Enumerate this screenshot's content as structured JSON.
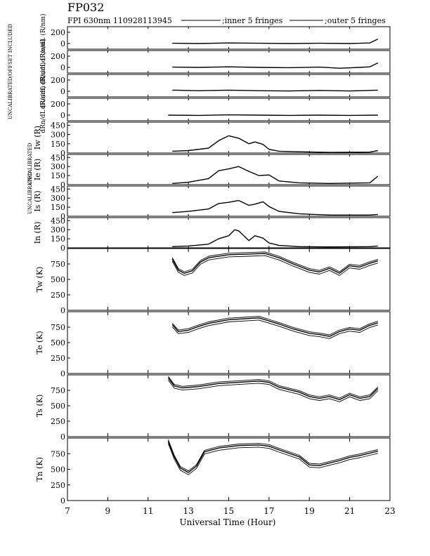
{
  "chart_data": {
    "type": "line",
    "title": "FP032",
    "subtitle": "FPI 630nm 110928113945",
    "legend": [
      {
        "name": ";inner 5 fringes"
      },
      {
        "name": ";outer 5 fringes"
      }
    ],
    "xlabel": "Universal Time (Hour)",
    "xlim": [
      7,
      23
    ],
    "xticks": [
      "7",
      "9",
      "11",
      "13",
      "15",
      "17",
      "19",
      "21",
      "23"
    ],
    "panels": [
      {
        "ylabel": "dRw/dL (R/nm)",
        "ylim": [
          -100,
          300
        ],
        "yticks": [
          0,
          200
        ],
        "series": [
          {
            "x": [
              12.2,
              13.5,
              15.0,
              16.5,
              18.0,
              19.5,
              21.0,
              22.0,
              22.4
            ],
            "y": [
              5,
              0,
              10,
              5,
              0,
              5,
              0,
              10,
              80
            ]
          }
        ]
      },
      {
        "ylabel": "dRs/dL (R/nm)",
        "ylim": [
          -100,
          300
        ],
        "yticks": [
          0,
          200
        ],
        "series": [
          {
            "x": [
              12.2,
              13.5,
              15.0,
              16.5,
              18.0,
              19.5,
              20.5,
              21.5,
              22.0,
              22.4
            ],
            "y": [
              5,
              0,
              10,
              0,
              -5,
              5,
              -15,
              0,
              10,
              80
            ]
          }
        ]
      },
      {
        "ylabel": "dRe/dL (R/nm)",
        "ylim": [
          -100,
          300
        ],
        "yticks": [
          0,
          200
        ],
        "series": [
          {
            "x": [
              12.2,
              13.5,
              15.0,
              16.5,
              18.0,
              19.5,
              21.0,
              22.4
            ],
            "y": [
              20,
              10,
              20,
              10,
              5,
              15,
              5,
              20
            ]
          }
        ]
      },
      {
        "ylabel": "dRn/dL (R/nm)",
        "ylim": [
          -100,
          300
        ],
        "yticks": [
          0,
          200
        ],
        "series": [
          {
            "x": [
              12.0,
              13.5,
              15.0,
              16.5,
              18.0,
              19.5,
              21.0,
              22.4
            ],
            "y": [
              0,
              -5,
              5,
              0,
              -5,
              0,
              -5,
              0
            ]
          }
        ]
      },
      {
        "ylabel": "Iw (R)",
        "ylim": [
          0,
          500
        ],
        "yticks": [
          0,
          150,
          300,
          450
        ],
        "series": [
          {
            "x": [
              12.2,
              13.0,
              14.0,
              14.5,
              15.0,
              15.5,
              16.0,
              16.3,
              16.7,
              17.0,
              17.5,
              18.5,
              20.0,
              22.0,
              22.4
            ],
            "y": [
              30,
              40,
              80,
              200,
              280,
              240,
              150,
              180,
              140,
              60,
              30,
              20,
              10,
              15,
              40
            ]
          }
        ]
      },
      {
        "ylabel": "Ie (R)",
        "ylim": [
          0,
          500
        ],
        "yticks": [
          0,
          150,
          300,
          450
        ],
        "series": [
          {
            "x": [
              12.2,
              13.0,
              14.0,
              14.5,
              15.0,
              15.5,
              16.0,
              16.5,
              17.0,
              17.5,
              18.5,
              20.0,
              22.0,
              22.4
            ],
            "y": [
              20,
              40,
              100,
              230,
              260,
              300,
              220,
              150,
              160,
              60,
              30,
              20,
              30,
              140
            ]
          }
        ]
      },
      {
        "ylabel": "Is (R)",
        "ylim": [
          0,
          500
        ],
        "yticks": [
          0,
          150,
          300,
          450
        ],
        "series": [
          {
            "x": [
              12.2,
              13.0,
              14.0,
              14.5,
              15.0,
              15.5,
              16.0,
              16.3,
              16.7,
              17.0,
              17.5,
              18.5,
              20.0,
              22.0,
              22.4
            ],
            "y": [
              60,
              80,
              120,
              210,
              230,
              260,
              180,
              200,
              240,
              160,
              80,
              40,
              20,
              20,
              30
            ]
          }
        ]
      },
      {
        "ylabel": "In (R)",
        "ylim": [
          0,
          500
        ],
        "yticks": [
          0,
          150,
          300,
          450
        ],
        "series": [
          {
            "x": [
              12.2,
              13.0,
              14.0,
              14.5,
              15.0,
              15.3,
              15.5,
              16.0,
              16.3,
              16.7,
              17.0,
              17.5,
              18.5,
              20.0,
              22.0,
              22.4
            ],
            "y": [
              20,
              30,
              60,
              150,
              200,
              300,
              280,
              120,
              200,
              160,
              80,
              40,
              20,
              15,
              20,
              30
            ]
          }
        ]
      },
      {
        "ylabel": "Tw (K)",
        "ylim": [
          0,
          1000
        ],
        "yticks": [
          0,
          250,
          500,
          750
        ],
        "series": [
          {
            "x": [
              12.2,
              12.5,
              12.8,
              13.2,
              13.6,
              14.0,
              15.0,
              16.0,
              16.8,
              17.5,
              18.2,
              19.0,
              19.5,
              20.0,
              20.5,
              21.0,
              21.5,
              22.0,
              22.4
            ],
            "y": [
              830,
              650,
              600,
              640,
              780,
              850,
              900,
              910,
              920,
              850,
              750,
              650,
              620,
              680,
              600,
              720,
              700,
              760,
              800
            ]
          }
        ]
      },
      {
        "ylabel": "Te (K)",
        "ylim": [
          0,
          1000
        ],
        "yticks": [
          0,
          250,
          500,
          750
        ],
        "series": [
          {
            "x": [
              12.2,
              12.5,
              13.0,
              13.5,
              14.0,
              15.0,
              16.0,
              16.5,
              17.0,
              17.5,
              18.2,
              19.0,
              19.5,
              20.0,
              20.5,
              21.0,
              21.5,
              22.0,
              22.4
            ],
            "y": [
              790,
              680,
              700,
              760,
              810,
              870,
              890,
              900,
              850,
              800,
              720,
              650,
              630,
              600,
              680,
              720,
              700,
              780,
              820
            ]
          }
        ]
      },
      {
        "ylabel": "Ts (K)",
        "ylim": [
          0,
          1000
        ],
        "yticks": [
          0,
          250,
          500,
          750
        ],
        "series": [
          {
            "x": [
              12.0,
              12.3,
              12.7,
              13.5,
              14.5,
              15.5,
              16.5,
              17.0,
              17.5,
              18.5,
              19.0,
              19.5,
              20.0,
              20.5,
              21.0,
              21.5,
              22.0,
              22.4
            ],
            "y": [
              950,
              820,
              790,
              810,
              860,
              880,
              900,
              880,
              800,
              720,
              650,
              620,
              650,
              600,
              680,
              620,
              650,
              780
            ]
          }
        ]
      },
      {
        "ylabel": "Tn (K)",
        "ylim": [
          0,
          1000
        ],
        "yticks": [
          0,
          250,
          500,
          750
        ],
        "series": [
          {
            "x": [
              12.0,
              12.3,
              12.6,
              13.0,
              13.4,
              13.8,
              14.5,
              15.5,
              16.5,
              17.0,
              17.5,
              18.5,
              19.0,
              19.5,
              20.0,
              20.5,
              21.0,
              21.5,
              22.0,
              22.4
            ],
            "y": [
              950,
              700,
              520,
              450,
              550,
              780,
              840,
              880,
              890,
              870,
              810,
              700,
              570,
              560,
              600,
              640,
              690,
              720,
              760,
              790
            ]
          }
        ]
      }
    ],
    "side_labels": [
      "UNCALIBRATED/OFFSET INCLUDED",
      "UNCALIBRATED",
      "UNCALIBRATED"
    ]
  }
}
